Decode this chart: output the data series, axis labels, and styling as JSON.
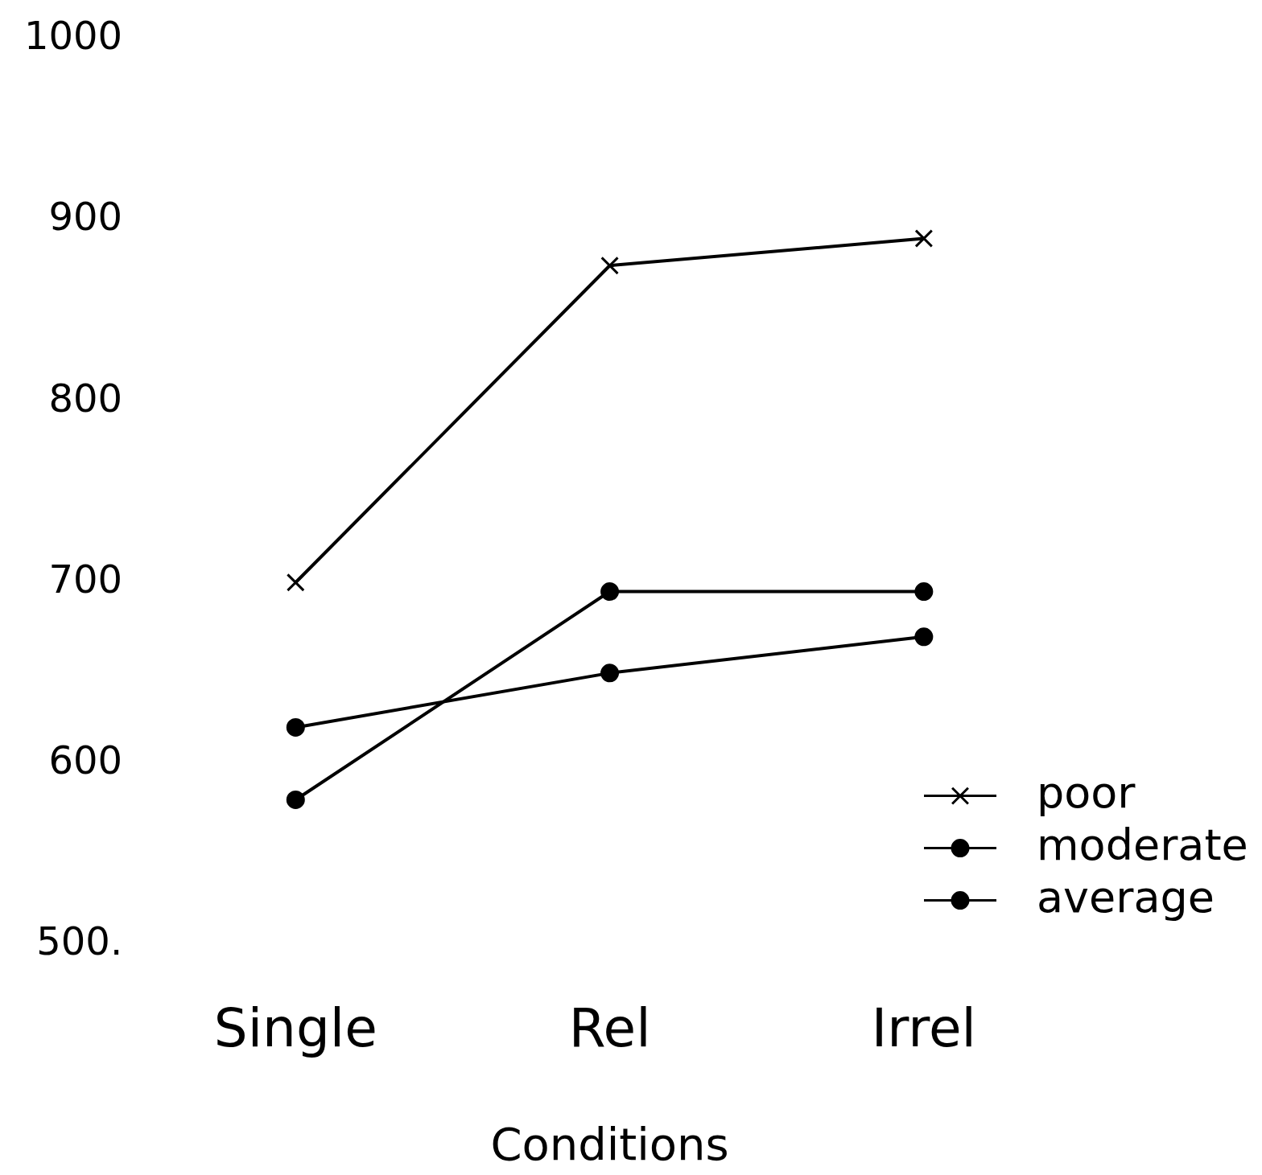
{
  "chart_data": {
    "type": "line",
    "xlabel": "Conditions",
    "categories": [
      "Single",
      "Rel",
      "Irrel"
    ],
    "ylim": [
      500,
      1000
    ],
    "yticks": [
      {
        "value": 500,
        "label": "500."
      },
      600,
      700,
      800,
      900,
      1000
    ],
    "grid": false,
    "legend": "bottom right",
    "line_style": "solid",
    "series": [
      {
        "name": "poor",
        "color": "#000000",
        "marker": "cross",
        "values": [
          700,
          875,
          890
        ]
      },
      {
        "name": "moderate",
        "color": "#000000",
        "marker": "circle",
        "values": [
          620,
          650,
          670
        ]
      },
      {
        "name": "average",
        "color": "#000000",
        "marker": "circle",
        "values": [
          580,
          695,
          695
        ]
      }
    ]
  }
}
